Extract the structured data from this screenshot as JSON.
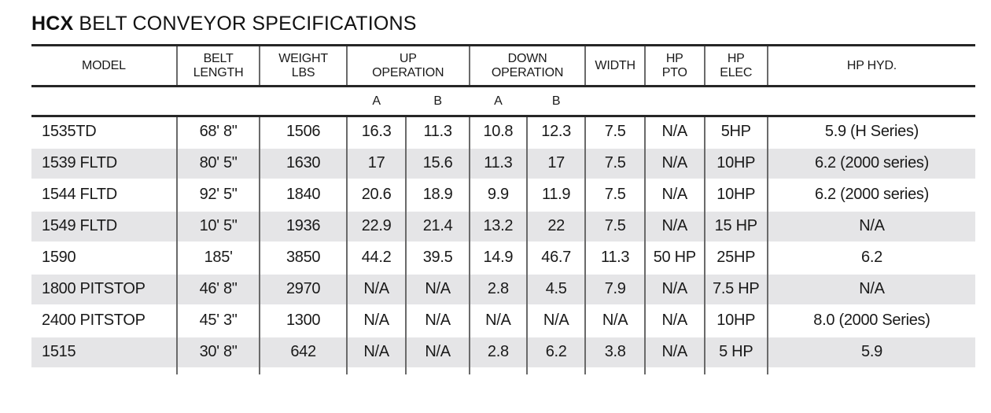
{
  "title": {
    "brand": "HCX",
    "rest": "BELT CONVEYOR SPECIFICATIONS"
  },
  "table": {
    "headers": {
      "model": "MODEL",
      "belt_length": "BELT\nLENGTH",
      "weight_lbs": "WEIGHT\nLBS",
      "up_operation": "UP\nOPERATION",
      "down_operation": "DOWN\nOPERATION",
      "width": "WIDTH",
      "hp_pto": "HP\nPTO",
      "hp_elec": "HP\nELEC",
      "hp_hyd": "HP HYD."
    },
    "subheaders": {
      "up_a": "A",
      "up_b": "B",
      "down_a": "A",
      "down_b": "B"
    },
    "column_ids": [
      "model",
      "belt_length",
      "weight_lbs",
      "up_a",
      "up_b",
      "down_a",
      "down_b",
      "width",
      "hp_pto",
      "hp_elec",
      "hp_hyd"
    ],
    "rows": [
      [
        "1535TD",
        "68' 8\"",
        "1506",
        "16.3",
        "11.3",
        "10.8",
        "12.3",
        "7.5",
        "N/A",
        "5HP",
        "5.9 (H Series)"
      ],
      [
        "1539 FLTD",
        "80' 5\"",
        "1630",
        "17",
        "15.6",
        "11.3",
        "17",
        "7.5",
        "N/A",
        "10HP",
        "6.2 (2000 series)"
      ],
      [
        "1544 FLTD",
        "92' 5\"",
        "1840",
        "20.6",
        "18.9",
        "9.9",
        "11.9",
        "7.5",
        "N/A",
        "10HP",
        "6.2 (2000 series)"
      ],
      [
        "1549 FLTD",
        "10' 5\"",
        "1936",
        "22.9",
        "21.4",
        "13.2",
        "22",
        "7.5",
        "N/A",
        "15 HP",
        "N/A"
      ],
      [
        "1590",
        "185'",
        "3850",
        "44.2",
        "39.5",
        "14.9",
        "46.7",
        "11.3",
        "50 HP",
        "25HP",
        "6.2"
      ],
      [
        "1800 PITSTOP",
        "46' 8\"",
        "2970",
        "N/A",
        "N/A",
        "2.8",
        "4.5",
        "7.9",
        "N/A",
        "7.5 HP",
        "N/A"
      ],
      [
        "2400 PITSTOP",
        "45' 3\"",
        "1300",
        "N/A",
        "N/A",
        "N/A",
        "N/A",
        "N/A",
        "N/A",
        "10HP",
        "8.0 (2000 Series)"
      ],
      [
        "1515",
        "30' 8\"",
        "642",
        "N/A",
        "N/A",
        "2.8",
        "6.2",
        "3.8",
        "N/A",
        "5 HP",
        "5.9"
      ]
    ]
  },
  "colors": {
    "row_alt_background": "#e5e5e7",
    "rule": "#262626",
    "column_divider": "#6a6a6a",
    "text": "#1a1a1a"
  }
}
